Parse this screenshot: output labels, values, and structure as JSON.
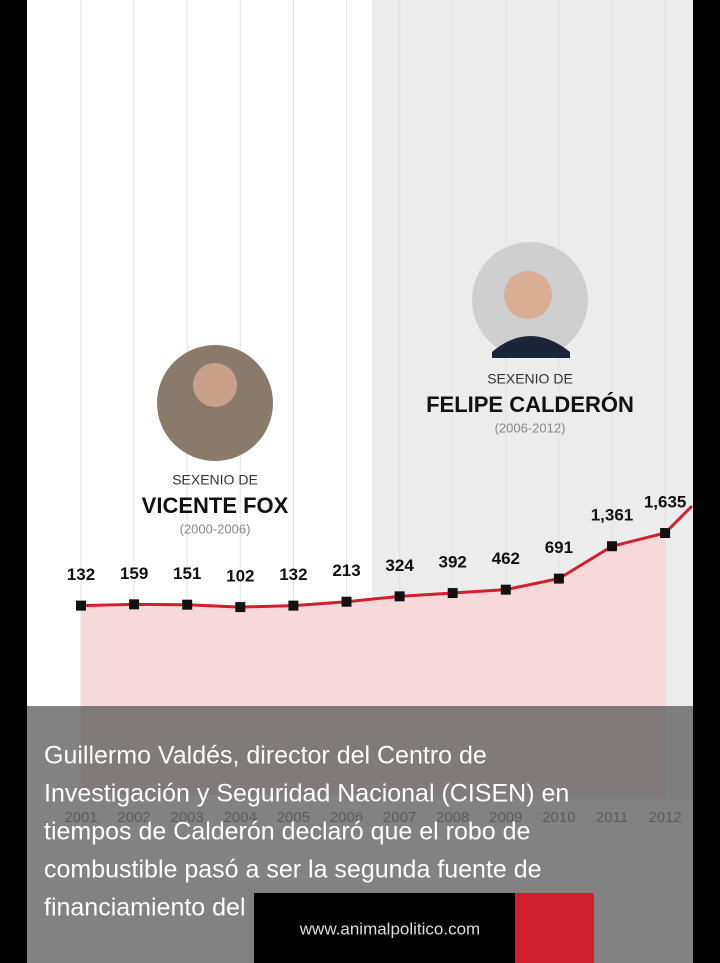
{
  "chart_data": {
    "type": "line",
    "categories": [
      "2001",
      "2002",
      "2003",
      "2004",
      "2005",
      "2006",
      "2007",
      "2008",
      "2009",
      "2010",
      "2011",
      "2012"
    ],
    "values": [
      132,
      159,
      151,
      102,
      132,
      213,
      324,
      392,
      462,
      691,
      1361,
      1635
    ],
    "value_labels": [
      "132",
      "159",
      "151",
      "102",
      "132",
      "213",
      "324",
      "392",
      "462",
      "691",
      "1,361",
      "1,635"
    ],
    "color": "#d0202e",
    "annotations": [
      {
        "pre": "SEXENIO DE",
        "name": "VICENTE FOX",
        "years": "(2000-2006)"
      },
      {
        "pre": "SEXENIO DE",
        "name": "FELIPE CALDERÓN",
        "years": "(2006-2012)"
      }
    ]
  },
  "caption": [
    "Guillermo Valdés, director del Centro de",
    "Investigación y Seguridad Nacional (CISEN) en",
    "tiempos de Calderón declaró que el robo de",
    "combustible pasó a ser la segunda fuente de",
    "financiamiento del narco."
  ],
  "watermark": "www.animalpolitico.com"
}
